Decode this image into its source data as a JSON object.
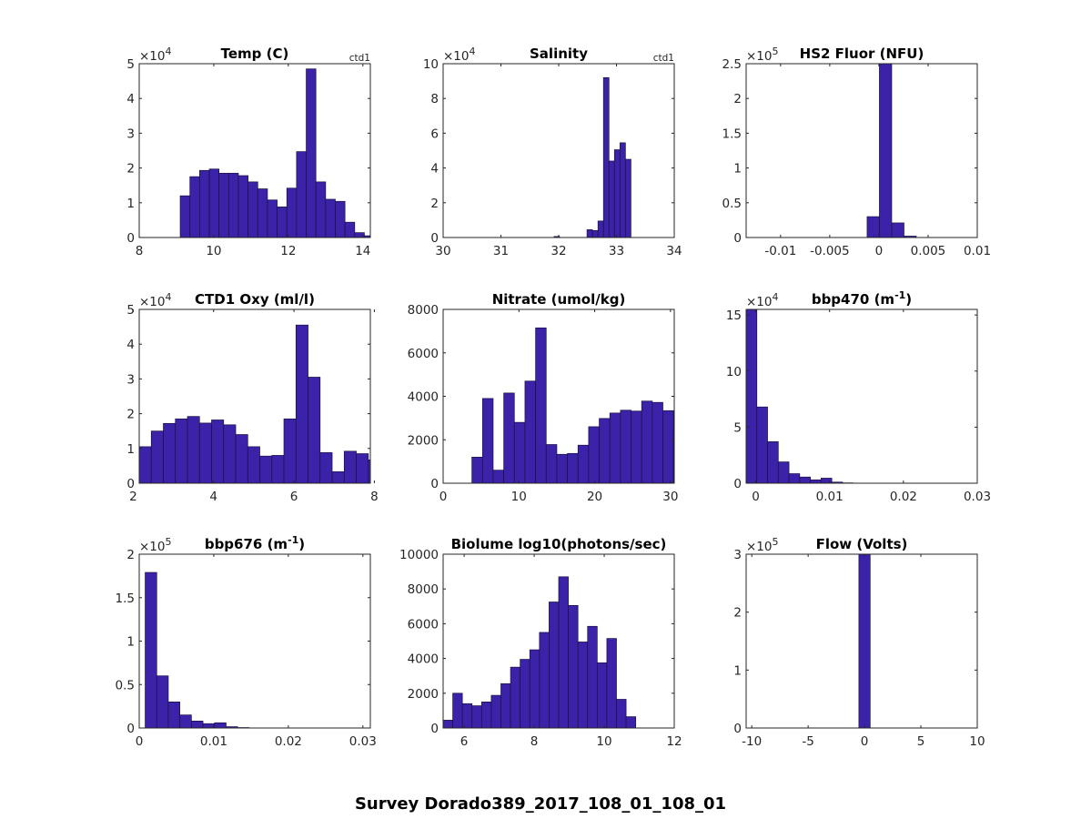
{
  "suptitle": "Survey Dorado389_2017_108_01_108_01",
  "colors": {
    "bar": "#3b22a8",
    "edge": "#1c1040",
    "axis": "#262626"
  },
  "chart_data": [
    {
      "type": "bar",
      "title": "Temp (C)",
      "tag": "ctd1",
      "multiplier": "×10",
      "multiplier_exp": "4",
      "xlim": [
        8,
        14.2
      ],
      "ylim": [
        0,
        5
      ],
      "xticks": [
        8,
        10,
        12,
        14
      ],
      "xtick_labels": [
        "8",
        "10",
        "12",
        "14"
      ],
      "yticks": [
        0,
        1,
        2,
        3,
        4,
        5
      ],
      "ytick_labels": [
        "0",
        "1",
        "2",
        "3",
        "4",
        "5"
      ],
      "bins": {
        "start": 9.1,
        "width": 0.26,
        "values": [
          1.2,
          1.75,
          1.93,
          1.97,
          1.85,
          1.85,
          1.78,
          1.6,
          1.4,
          1.08,
          0.88,
          1.42,
          2.47,
          4.85,
          1.6,
          1.1,
          1.04,
          0.44,
          0.14,
          0.05
        ]
      }
    },
    {
      "type": "bar",
      "title": "Salinity",
      "tag": "ctd1",
      "multiplier": "×10",
      "multiplier_exp": "4",
      "xlim": [
        30,
        34
      ],
      "ylim": [
        0,
        10
      ],
      "xticks": [
        30,
        31,
        32,
        33,
        34
      ],
      "xtick_labels": [
        "30",
        "31",
        "32",
        "33",
        "34"
      ],
      "yticks": [
        0,
        2,
        4,
        6,
        8,
        10
      ],
      "ytick_labels": [
        "0",
        "2",
        "4",
        "6",
        "8",
        "10"
      ],
      "bins": {
        "start": 31.92,
        "width": 0.095,
        "values": [
          0.06,
          0,
          0,
          0,
          0,
          0,
          0.45,
          0.4,
          0.95,
          9.2,
          4.4,
          5.05,
          5.45,
          4.5
        ]
      }
    },
    {
      "type": "bar",
      "title": "HS2 Fluor (NFU)",
      "tag": "",
      "multiplier": "×10",
      "multiplier_exp": "5",
      "xlim": [
        -0.0135,
        0.01
      ],
      "ylim": [
        0,
        2.5
      ],
      "xticks": [
        -0.01,
        -0.005,
        0,
        0.005,
        0.01
      ],
      "xtick_labels": [
        "-0.01",
        "-0.005",
        "0",
        "0.005",
        "0.01"
      ],
      "yticks": [
        0,
        0.5,
        1,
        1.5,
        2,
        2.5
      ],
      "ytick_labels": [
        "0",
        "0.5",
        "1",
        "1.5",
        "2",
        "2.5"
      ],
      "bins": {
        "start": -0.0012,
        "width": 0.00125,
        "values": [
          0.3,
          2.5,
          0.21,
          0.02
        ]
      }
    },
    {
      "type": "bar",
      "title": "CTD1 Oxy (ml/l)",
      "tag": "",
      "multiplier": "×10",
      "multiplier_exp": "4",
      "xlim": [
        2.15,
        7.9
      ],
      "ylim": [
        0,
        5
      ],
      "xticks": [
        2,
        4,
        6,
        8
      ],
      "xtick_labels": [
        "2",
        "4",
        "6",
        "8"
      ],
      "yticks": [
        0,
        1,
        2,
        3,
        4,
        5
      ],
      "ytick_labels": [
        "0",
        "1",
        "2",
        "3",
        "4",
        "5"
      ],
      "bins": {
        "start": 2.15,
        "width": 0.3,
        "values": [
          1.05,
          1.5,
          1.72,
          1.85,
          1.92,
          1.73,
          1.82,
          1.68,
          1.4,
          1.05,
          0.78,
          0.8,
          1.85,
          4.55,
          3.05,
          0.88,
          0.33,
          0.92,
          0.85,
          0.67
        ]
      }
    },
    {
      "type": "bar",
      "title": "Nitrate (umol/kg)",
      "tag": "",
      "multiplier": "",
      "multiplier_exp": "",
      "xlim": [
        0,
        30.5
      ],
      "ylim": [
        0,
        8000
      ],
      "xticks": [
        0,
        10,
        20,
        30
      ],
      "xtick_labels": [
        "0",
        "10",
        "20",
        "30"
      ],
      "yticks": [
        0,
        2000,
        4000,
        6000,
        8000
      ],
      "ytick_labels": [
        "0",
        "2000",
        "4000",
        "6000",
        "8000"
      ],
      "bins": {
        "start": 3.8,
        "width": 1.4,
        "values": [
          1200,
          3900,
          600,
          4150,
          2800,
          4700,
          7150,
          1780,
          1330,
          1370,
          1750,
          2600,
          2980,
          3230,
          3360,
          3320,
          3780,
          3720,
          3340,
          2360
        ]
      }
    },
    {
      "type": "bar",
      "title": "bbp470 (m",
      "title_sup": "-1",
      "title_suffix": ")",
      "tag": "",
      "multiplier": "×10",
      "multiplier_exp": "4",
      "xlim": [
        -0.0013,
        0.03
      ],
      "ylim": [
        0,
        15.5
      ],
      "xticks": [
        0,
        0.01,
        0.02,
        0.03
      ],
      "xtick_labels": [
        "0",
        "0.01",
        "0.02",
        "0.03"
      ],
      "yticks": [
        0,
        5,
        10,
        15
      ],
      "ytick_labels": [
        "0",
        "5",
        "10",
        "15"
      ],
      "bins": {
        "start": -0.0013,
        "width": 0.00145,
        "values": [
          15.5,
          6.8,
          3.7,
          1.9,
          0.85,
          0.55,
          0.3,
          0.45,
          0.1,
          0.03
        ]
      }
    },
    {
      "type": "bar",
      "title": "bbp676 (m",
      "title_sup": "-1",
      "title_suffix": ")",
      "tag": "",
      "multiplier": "×10",
      "multiplier_exp": "5",
      "xlim": [
        0,
        0.031
      ],
      "ylim": [
        0,
        2
      ],
      "xticks": [
        0,
        0.01,
        0.02,
        0.03
      ],
      "xtick_labels": [
        "0",
        "0.01",
        "0.02",
        "0.03"
      ],
      "yticks": [
        0,
        0.5,
        1,
        1.5,
        2
      ],
      "ytick_labels": [
        "0",
        "0.5",
        "1",
        "1.5",
        "2"
      ],
      "bins": {
        "start": 0.0008,
        "width": 0.00155,
        "values": [
          1.79,
          0.6,
          0.3,
          0.15,
          0.08,
          0.05,
          0.06,
          0.015,
          0.005
        ]
      }
    },
    {
      "type": "bar",
      "title": "Biolume log10(photons/sec)",
      "tag": "",
      "multiplier": "",
      "multiplier_exp": "",
      "xlim": [
        5.4,
        12
      ],
      "ylim": [
        0,
        10000
      ],
      "xticks": [
        6,
        8,
        10,
        12
      ],
      "xtick_labels": [
        "6",
        "8",
        "10",
        "12"
      ],
      "yticks": [
        0,
        2000,
        4000,
        6000,
        8000,
        10000
      ],
      "ytick_labels": [
        "0",
        "2000",
        "4000",
        "6000",
        "8000",
        "10000"
      ],
      "bins": {
        "start": 5.4,
        "width": 0.275,
        "values": [
          450,
          2000,
          1400,
          1280,
          1500,
          1880,
          2550,
          3500,
          3950,
          4500,
          5500,
          7250,
          8700,
          7050,
          4950,
          5850,
          3750,
          5150,
          1650,
          650
        ]
      }
    },
    {
      "type": "bar",
      "title": "Flow (Volts)",
      "tag": "",
      "multiplier": "×10",
      "multiplier_exp": "5",
      "xlim": [
        -10.5,
        10
      ],
      "ylim": [
        0,
        3
      ],
      "xticks": [
        -10,
        -5,
        0,
        5,
        10
      ],
      "xtick_labels": [
        "-10",
        "-5",
        "0",
        "5",
        "10"
      ],
      "yticks": [
        0,
        1,
        2,
        3
      ],
      "ytick_labels": [
        "0",
        "1",
        "2",
        "3"
      ],
      "bins": {
        "start": -0.5,
        "width": 1.0,
        "values": [
          3.05
        ]
      }
    }
  ]
}
